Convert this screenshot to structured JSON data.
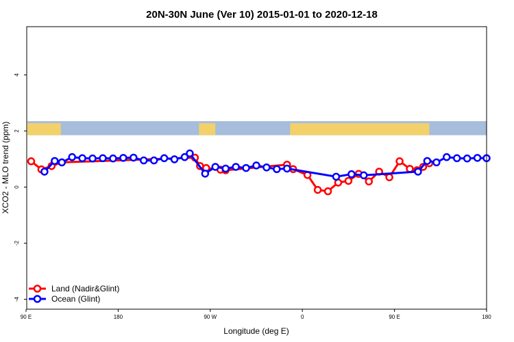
{
  "chart_data": {
    "type": "line",
    "title": "20N-30N June (Ver 10)   2015-01-01 to 2020-12-18",
    "xlabel": "Longitude (deg E)",
    "ylabel": "XCO2 - MLO trend (ppm)",
    "xlim": [
      90,
      540
    ],
    "ylim": [
      -4.1,
      5.6
    ],
    "x_ticks": [
      {
        "value": 90,
        "label": "90 E"
      },
      {
        "value": 180,
        "label": "180"
      },
      {
        "value": 270,
        "label": "90 W"
      },
      {
        "value": 360,
        "label": "0"
      },
      {
        "value": 450,
        "label": "90 E"
      },
      {
        "value": 540,
        "label": "180"
      }
    ],
    "y_ticks": [
      {
        "value": -4,
        "label": "-4"
      },
      {
        "value": -2,
        "label": "-2"
      },
      {
        "value": 0,
        "label": "0"
      },
      {
        "value": 2,
        "label": "2"
      },
      {
        "value": 4,
        "label": "4"
      }
    ],
    "map_band": {
      "ymin": 1.85,
      "ymax": 2.35,
      "ocean_color": "#a6bddb",
      "land_color": "#f2d16b",
      "land_ranges": [
        [
          90,
          124
        ],
        [
          259,
          275
        ],
        [
          348,
          484
        ]
      ]
    },
    "legend_position": "bottom-left",
    "series": [
      {
        "name": "Land (Nadir&Glint)",
        "color": "#ff0000",
        "points": [
          [
            95,
            0.92
          ],
          [
            105,
            0.63
          ],
          [
            115,
            0.75
          ],
          [
            125,
            0.88
          ],
          [
            255,
            1.05
          ],
          [
            260,
            0.75
          ],
          [
            266,
            0.68
          ],
          [
            280,
            0.62
          ],
          [
            285,
            0.6
          ],
          [
            345,
            0.8
          ],
          [
            351,
            0.64
          ],
          [
            365,
            0.43
          ],
          [
            375,
            -0.1
          ],
          [
            385,
            -0.15
          ],
          [
            395,
            0.16
          ],
          [
            405,
            0.22
          ],
          [
            415,
            0.47
          ],
          [
            425,
            0.2
          ],
          [
            435,
            0.55
          ],
          [
            445,
            0.35
          ],
          [
            455,
            0.92
          ],
          [
            465,
            0.65
          ],
          [
            472,
            0.6
          ],
          [
            478,
            0.72
          ],
          [
            484,
            0.85
          ]
        ]
      },
      {
        "name": "Ocean (Glint)",
        "color": "#0000ff",
        "points": [
          [
            108,
            0.55
          ],
          [
            118,
            0.93
          ],
          [
            125,
            0.88
          ],
          [
            135,
            1.07
          ],
          [
            145,
            1.03
          ],
          [
            155,
            1.02
          ],
          [
            165,
            1.03
          ],
          [
            175,
            1.02
          ],
          [
            185,
            1.04
          ],
          [
            195,
            1.05
          ],
          [
            205,
            0.95
          ],
          [
            215,
            0.95
          ],
          [
            225,
            1.03
          ],
          [
            235,
            0.99
          ],
          [
            245,
            1.07
          ],
          [
            250,
            1.2
          ],
          [
            265,
            0.48
          ],
          [
            275,
            0.72
          ],
          [
            285,
            0.66
          ],
          [
            295,
            0.72
          ],
          [
            305,
            0.68
          ],
          [
            315,
            0.77
          ],
          [
            325,
            0.7
          ],
          [
            335,
            0.64
          ],
          [
            345,
            0.66
          ],
          [
            393,
            0.37
          ],
          [
            408,
            0.46
          ],
          [
            420,
            0.42
          ],
          [
            473,
            0.55
          ],
          [
            482,
            0.93
          ],
          [
            491,
            0.88
          ],
          [
            501,
            1.07
          ],
          [
            511,
            1.03
          ],
          [
            521,
            1.02
          ],
          [
            531,
            1.04
          ],
          [
            540,
            1.03
          ]
        ]
      }
    ]
  }
}
